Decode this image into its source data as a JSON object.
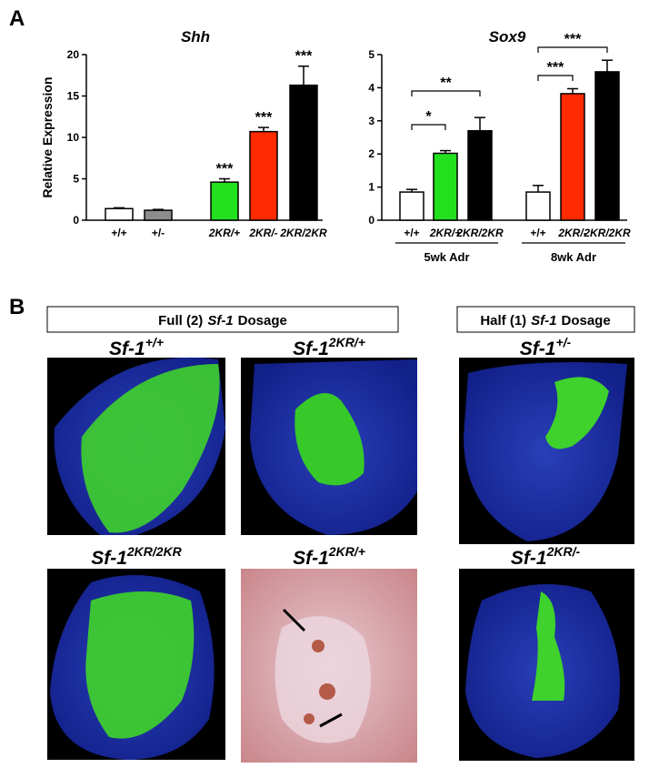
{
  "panel_labels": [
    "A",
    "B"
  ],
  "chart_data": [
    {
      "type": "bar",
      "title": "Shh",
      "y_label": "Relative Expression",
      "categories": [
        "+/+",
        "+/-",
        "2KR/+",
        "2KR/-",
        "2KR/2KR"
      ],
      "values": [
        1.4,
        1.2,
        4.6,
        10.7,
        16.3
      ],
      "errors": [
        0.1,
        0.1,
        0.4,
        0.5,
        2.3
      ],
      "colors": [
        "#ffffff",
        "#8c8c8c",
        "#22e01e",
        "#ff2a00",
        "#000000"
      ],
      "significance": [
        null,
        null,
        "***",
        "***",
        "***"
      ],
      "ylim": [
        0,
        20
      ],
      "yticks": [
        0,
        5,
        10,
        15,
        20
      ]
    },
    {
      "type": "bar",
      "title": "Sox9",
      "categories": [
        "+/+",
        "2KR/+",
        "2KR/2KR",
        "+/+",
        "2KR/-",
        "2KR/2KR"
      ],
      "values": [
        0.85,
        2.02,
        2.7,
        0.85,
        3.82,
        4.48
      ],
      "errors": [
        0.08,
        0.08,
        0.4,
        0.2,
        0.15,
        0.35
      ],
      "colors": [
        "#ffffff",
        "#22e01e",
        "#000000",
        "#ffffff",
        "#ff2a00",
        "#000000"
      ],
      "comparisons": [
        "*",
        "**",
        "***",
        "***"
      ],
      "groups": [
        "5wk Adr",
        "8wk Adr"
      ],
      "ylim": [
        0,
        5
      ],
      "yticks": [
        0,
        1,
        2,
        3,
        4,
        5
      ]
    }
  ],
  "sections": [
    [
      "Full (2)",
      "Sf-1",
      "Dosage"
    ],
    [
      "Half (1)",
      "Sf-1",
      "Dosage"
    ]
  ],
  "images": [
    {
      "gene": "Sf-1",
      "genotype": "+/+"
    },
    {
      "gene": "Sf-1",
      "genotype": "2KR/+"
    },
    {
      "gene": "Sf-1",
      "genotype": "+/-"
    },
    {
      "gene": "Sf-1",
      "genotype": "2KR/2KR"
    },
    {
      "gene": "Sf-1",
      "genotype": "2KR/+"
    },
    {
      "gene": "Sf-1",
      "genotype": "2KR/-"
    }
  ]
}
